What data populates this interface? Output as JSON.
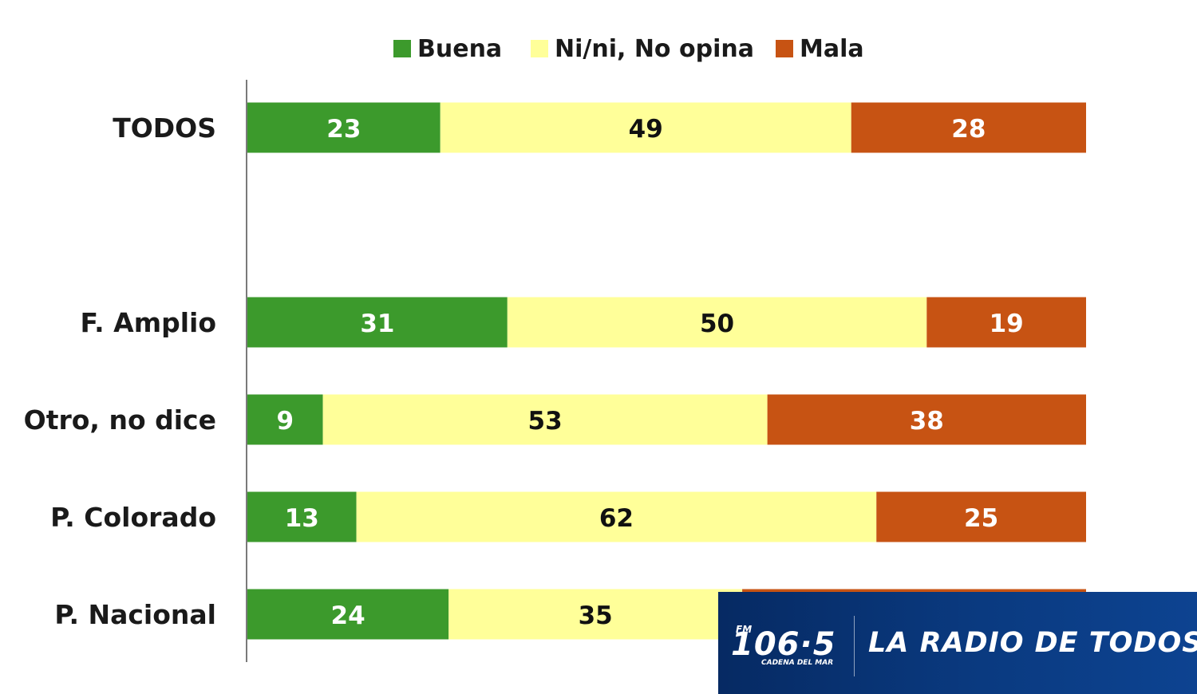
{
  "chart_data": {
    "type": "bar",
    "orientation": "horizontal",
    "stacked": true,
    "title": "",
    "xlabel": "",
    "ylabel": "",
    "xlim": [
      0,
      100
    ],
    "grid": false,
    "legend_position": "top",
    "categories": [
      "TODOS",
      "F. Amplio",
      "Otro, no dice",
      "P. Colorado",
      "P. Nacional"
    ],
    "series": [
      {
        "name": "Buena",
        "color": "#3c9a2c",
        "label_color": "#ffffff",
        "values": [
          23,
          31,
          9,
          13,
          24
        ]
      },
      {
        "name": "Ni/ni, No opina",
        "color": "#ffff99",
        "label_color": "#111111",
        "values": [
          49,
          50,
          53,
          62,
          35
        ]
      },
      {
        "name": "Mala",
        "color": "#c75313",
        "label_color": "#ffffff",
        "values": [
          28,
          19,
          38,
          25,
          41
        ]
      }
    ]
  },
  "banner": {
    "logo_fm": "FM",
    "logo_number": "106·5",
    "logo_subtitle": "CADENA DEL MAR",
    "tagline": "LA RADIO DE TODOS",
    "background_color": "#0a3a80"
  }
}
